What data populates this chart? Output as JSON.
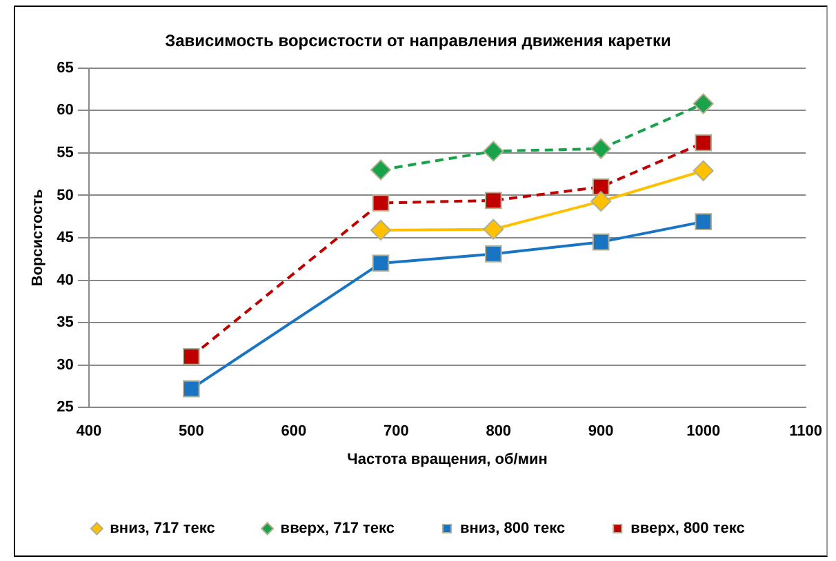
{
  "chart_data": {
    "type": "line",
    "title": "Зависимость ворсистости от направления движения каретки",
    "xlabel": "Частота вращения, об/мин",
    "ylabel": "Ворсистость",
    "xlim": [
      400,
      1100
    ],
    "xticks": [
      400,
      500,
      600,
      700,
      800,
      900,
      1000,
      1100
    ],
    "ylim": [
      25,
      65
    ],
    "yticks": [
      25,
      30,
      35,
      40,
      45,
      50,
      55,
      60,
      65
    ],
    "grid": "y",
    "legend": "bottom",
    "series": [
      {
        "name": "вниз, 717 текс",
        "color": "#ffc000",
        "marker": "diamond",
        "line_style": "solid",
        "x": [
          685,
          795,
          900,
          1000
        ],
        "values": [
          45.9,
          46.0,
          49.3,
          52.9
        ]
      },
      {
        "name": "вверх, 717 текс",
        "color": "#1aa24a",
        "marker": "diamond",
        "line_style": "dashed",
        "x": [
          685,
          795,
          900,
          1000
        ],
        "values": [
          53.0,
          55.2,
          55.5,
          60.8
        ]
      },
      {
        "name": "вниз, 800 текс",
        "color": "#1a74c4",
        "marker": "square",
        "line_style": "solid",
        "x": [
          500,
          685,
          795,
          900,
          1000
        ],
        "values": [
          27.2,
          42.0,
          43.1,
          44.5,
          46.9
        ]
      },
      {
        "name": "вверх, 800 текс",
        "color": "#c00000",
        "marker": "square",
        "line_style": "dashed",
        "x": [
          500,
          685,
          795,
          900,
          1000
        ],
        "values": [
          31.0,
          49.1,
          49.4,
          51.0,
          56.2
        ]
      }
    ]
  }
}
